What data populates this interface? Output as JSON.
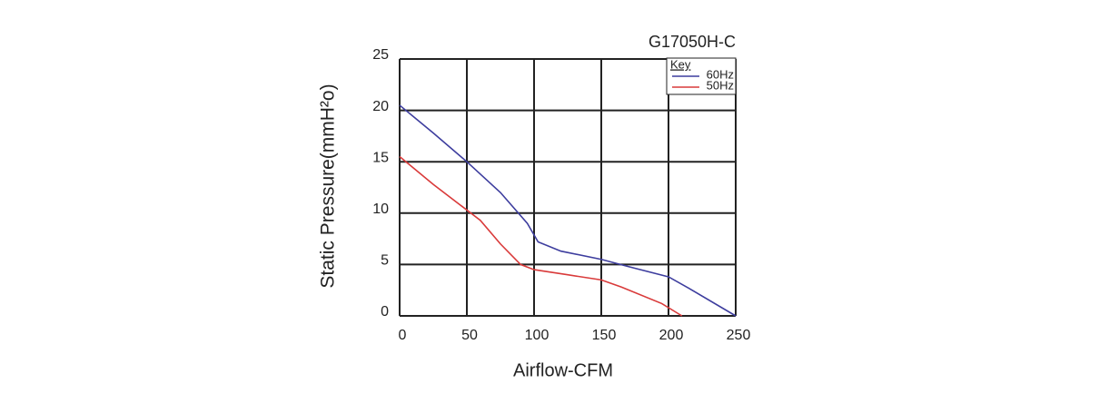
{
  "chart_data": {
    "type": "line",
    "title": "G17050H-C",
    "x_label": "Airflow-CFM",
    "y_label": "Static Pressure(mmH²o)",
    "legend_title": "Key",
    "legend_position": "upper right",
    "grid": true,
    "xlim": [
      0,
      250
    ],
    "xticks": [
      0,
      50,
      100,
      150,
      200,
      250
    ],
    "ylim": [
      0,
      25
    ],
    "yticks": [
      0,
      5,
      10,
      15,
      20,
      25
    ],
    "series": [
      {
        "name": "60Hz",
        "color": "#3d3d9e",
        "x": [
          0,
          25,
          50,
          75,
          95,
          103,
          120,
          150,
          170,
          200,
          215,
          250
        ],
        "values": [
          20.5,
          17.8,
          15,
          12,
          9,
          7.2,
          6.3,
          5.5,
          4.8,
          3.8,
          2.7,
          0
        ]
      },
      {
        "name": "50Hz",
        "color": "#d93a3a",
        "x": [
          0,
          25,
          50,
          60,
          75,
          90,
          100,
          125,
          150,
          165,
          195,
          210
        ],
        "values": [
          15.5,
          12.8,
          10.3,
          9.3,
          7,
          5,
          4.5,
          4,
          3.5,
          2.8,
          1.2,
          0
        ]
      }
    ]
  }
}
